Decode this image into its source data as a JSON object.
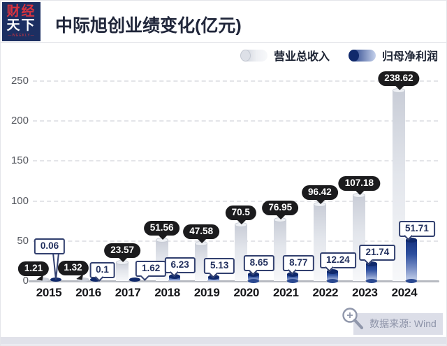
{
  "header": {
    "logo": {
      "line1": "财经",
      "line2": "天下",
      "weekly": "—WEEKLY—"
    },
    "title_main": "中际旭创业绩变化",
    "title_unit": "(亿元)"
  },
  "legend": {
    "items": [
      {
        "label": "营业总收入",
        "series": "revenue"
      },
      {
        "label": "归母净利润",
        "series": "profit"
      }
    ]
  },
  "footer": {
    "source_label": "数据来源: Wind",
    "icon": "magnifier-plus-icon"
  },
  "colors": {
    "brand_navy": "#1c2f62",
    "brand_red": "#d8333f",
    "revenue_bar_top": "#c9cdd7",
    "revenue_bar_bottom": "#f7f8fa",
    "revenue_cap": "#eef0f4",
    "profit_bar_top": "#16327e",
    "profit_bar_bottom": "#c6d2ec",
    "profit_cap": "#10296b",
    "label_bubble_dark": "#1b1b1d",
    "label_box_border": "#32406f",
    "grid": "#e3e4e8",
    "axis": "#b7bac1",
    "source_bg": "#dcdee8",
    "source_text": "#8d93a8"
  },
  "chart_data": {
    "type": "bar",
    "title": "中际旭创业绩变化(亿元)",
    "categories": [
      "2015",
      "2016",
      "2017",
      "2018",
      "2019",
      "2020",
      "2021",
      "2022",
      "2023",
      "2024"
    ],
    "series": [
      {
        "name": "营业总收入",
        "values": [
          1.21,
          1.32,
          23.57,
          51.56,
          47.58,
          70.5,
          76.95,
          96.42,
          107.18,
          238.62
        ],
        "labels": [
          "1.21",
          "1.32",
          "23.57",
          "51.56",
          "47.58",
          "70.5",
          "76.95",
          "96.42",
          "107.18",
          "238.62"
        ]
      },
      {
        "name": "归母净利润",
        "values": [
          0.06,
          0.1,
          1.62,
          6.23,
          5.13,
          8.65,
          8.77,
          12.24,
          21.74,
          51.71
        ],
        "labels": [
          "0.06",
          "0.1",
          "1.62",
          "6.23",
          "5.13",
          "8.65",
          "8.77",
          "12.24",
          "21.74",
          "51.71"
        ]
      }
    ],
    "xlabel": "",
    "ylabel": "",
    "yticks": [
      0,
      50,
      100,
      150,
      200,
      250
    ],
    "ylim": [
      0,
      260
    ],
    "grid": true,
    "legend_position": "top-right"
  }
}
